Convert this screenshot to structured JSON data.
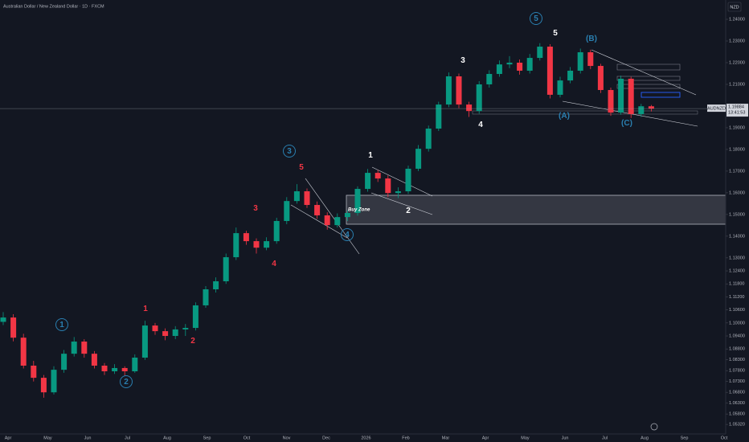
{
  "chart_data": {
    "type": "candlestick",
    "title": "Australian Dollar / New Zealand Dollar · 1D · FXCM",
    "currency": "NZD",
    "symbol_tag": "AUDNZD",
    "last_price": 1.19884,
    "countdown": "13:41:53",
    "up_color": "#089981",
    "down_color": "#f23645",
    "grid": false,
    "ylim": [
      1.0488,
      1.2489
    ],
    "yticks": [
      {
        "value": 1.24,
        "label": "1.24000"
      },
      {
        "value": 1.23,
        "label": "1.23000"
      },
      {
        "value": 1.22,
        "label": "1.22000"
      },
      {
        "value": 1.21,
        "label": "1.21000"
      },
      {
        "value": 1.19,
        "label": "1.19000"
      },
      {
        "value": 1.18,
        "label": "1.18000"
      },
      {
        "value": 1.17,
        "label": "1.17000"
      },
      {
        "value": 1.16,
        "label": "1.16000"
      },
      {
        "value": 1.15,
        "label": "1.15000"
      },
      {
        "value": 1.14,
        "label": "1.14000"
      },
      {
        "value": 1.13,
        "label": "1.13000"
      },
      {
        "value": 1.124,
        "label": "1.12400"
      },
      {
        "value": 1.118,
        "label": "1.11800"
      },
      {
        "value": 1.112,
        "label": "1.11200"
      },
      {
        "value": 1.106,
        "label": "1.10600"
      },
      {
        "value": 1.1,
        "label": "1.10000"
      },
      {
        "value": 1.094,
        "label": "1.09400"
      },
      {
        "value": 1.088,
        "label": "1.08800"
      },
      {
        "value": 1.083,
        "label": "1.08300"
      },
      {
        "value": 1.078,
        "label": "1.07800"
      },
      {
        "value": 1.073,
        "label": "1.07300"
      },
      {
        "value": 1.068,
        "label": "1.06800"
      },
      {
        "value": 1.063,
        "label": "1.06300"
      },
      {
        "value": 1.058,
        "label": "1.05800"
      },
      {
        "value": 1.0532,
        "label": "1.05320"
      }
    ],
    "months": [
      "Apr",
      "May",
      "Jun",
      "Jul",
      "Aug",
      "Sep",
      "Oct",
      "Nov",
      "Dec",
      "2026",
      "Feb",
      "Mar",
      "Apr",
      "May",
      "Jun",
      "Jul",
      "Aug",
      "Sep",
      "Oct"
    ],
    "ohlc": [
      [
        1.1005,
        1.105,
        1.099,
        1.1025
      ],
      [
        1.1025,
        1.104,
        1.0915,
        1.0932
      ],
      [
        1.0932,
        1.095,
        1.079,
        1.0803
      ],
      [
        1.0803,
        1.0825,
        1.073,
        1.0747
      ],
      [
        1.0747,
        1.076,
        1.0655,
        1.068
      ],
      [
        1.068,
        1.08,
        1.067,
        1.0784
      ],
      [
        1.0784,
        1.0875,
        1.077,
        1.0858
      ],
      [
        1.0858,
        1.0935,
        1.0845,
        1.0914
      ],
      [
        1.0914,
        1.0925,
        1.084,
        1.0858
      ],
      [
        1.0858,
        1.087,
        1.079,
        1.0803
      ],
      [
        1.0803,
        1.0815,
        1.076,
        1.0777
      ],
      [
        1.0777,
        1.081,
        1.0765,
        1.0792
      ],
      [
        1.0792,
        1.08,
        1.0755,
        1.0777
      ],
      [
        1.0777,
        1.0855,
        1.077,
        1.084
      ],
      [
        1.084,
        1.101,
        1.083,
        1.0988
      ],
      [
        1.0988,
        1.1,
        1.0945,
        1.0962
      ],
      [
        1.0962,
        1.0975,
        1.092,
        1.094
      ],
      [
        1.094,
        1.0985,
        1.0925,
        1.097
      ],
      [
        1.097,
        1.0995,
        1.094,
        1.0977
      ],
      [
        1.0977,
        1.1095,
        1.0965,
        1.1081
      ],
      [
        1.1081,
        1.117,
        1.107,
        1.1155
      ],
      [
        1.1155,
        1.121,
        1.114,
        1.1192
      ],
      [
        1.1192,
        1.132,
        1.118,
        1.1303
      ],
      [
        1.1303,
        1.144,
        1.129,
        1.1414
      ],
      [
        1.1414,
        1.1425,
        1.136,
        1.1377
      ],
      [
        1.1377,
        1.139,
        1.132,
        1.1347
      ],
      [
        1.1347,
        1.1395,
        1.1335,
        1.1377
      ],
      [
        1.1377,
        1.1485,
        1.1365,
        1.147
      ],
      [
        1.147,
        1.158,
        1.1455,
        1.1562
      ],
      [
        1.1562,
        1.164,
        1.155,
        1.1607
      ],
      [
        1.1607,
        1.162,
        1.153,
        1.1544
      ],
      [
        1.1544,
        1.156,
        1.148,
        1.1496
      ],
      [
        1.1496,
        1.151,
        1.143,
        1.1451
      ],
      [
        1.1451,
        1.1505,
        1.144,
        1.1488
      ],
      [
        1.1488,
        1.152,
        1.147,
        1.1507
      ],
      [
        1.1507,
        1.163,
        1.1495,
        1.1618
      ],
      [
        1.1618,
        1.171,
        1.1605,
        1.1692
      ],
      [
        1.1692,
        1.1705,
        1.165,
        1.1666
      ],
      [
        1.1666,
        1.168,
        1.158,
        1.1599
      ],
      [
        1.1599,
        1.1625,
        1.1575,
        1.1607
      ],
      [
        1.1607,
        1.1725,
        1.1595,
        1.1711
      ],
      [
        1.1711,
        1.182,
        1.17,
        1.1803
      ],
      [
        1.1803,
        1.191,
        1.179,
        1.1896
      ],
      [
        1.1896,
        1.202,
        1.1885,
        1.2007
      ],
      [
        1.2007,
        1.2155,
        1.1995,
        1.2137
      ],
      [
        1.2137,
        1.215,
        1.199,
        1.2007
      ],
      [
        1.2007,
        1.202,
        1.195,
        1.1977
      ],
      [
        1.1977,
        1.2115,
        1.1965,
        1.21
      ],
      [
        1.21,
        1.2165,
        1.2085,
        1.2148
      ],
      [
        1.2148,
        1.221,
        1.2135,
        1.2192
      ],
      [
        1.2192,
        1.223,
        1.2175,
        1.22
      ],
      [
        1.22,
        1.2215,
        1.2145,
        1.2163
      ],
      [
        1.2163,
        1.224,
        1.215,
        1.2222
      ],
      [
        1.2222,
        1.229,
        1.221,
        1.2274
      ],
      [
        1.2274,
        1.2285,
        1.2035,
        1.2052
      ],
      [
        1.2052,
        1.2135,
        1.204,
        1.2118
      ],
      [
        1.2118,
        1.218,
        1.2105,
        1.2163
      ],
      [
        1.2163,
        1.2265,
        1.215,
        1.2248
      ],
      [
        1.2248,
        1.226,
        1.217,
        1.2185
      ],
      [
        1.2185,
        1.2195,
        1.206,
        1.2074
      ],
      [
        1.2074,
        1.2085,
        1.1955,
        1.197
      ],
      [
        1.197,
        1.214,
        1.196,
        1.2126
      ],
      [
        1.2126,
        1.2135,
        1.1945,
        1.1963
      ],
      [
        1.1963,
        1.201,
        1.195,
        1.1999
      ],
      [
        1.1999,
        1.2005,
        1.1975,
        1.1988
      ]
    ],
    "wave_labels": [
      {
        "text": "1",
        "color": "#2a7fb0",
        "circled": true
      },
      {
        "text": "2",
        "color": "#2a7fb0",
        "circled": true
      },
      {
        "text": "3",
        "color": "#2a7fb0",
        "circled": true
      },
      {
        "text": "4",
        "color": "#2a7fb0",
        "circled": true
      },
      {
        "text": "5",
        "color": "#2a7fb0",
        "circled": true
      },
      {
        "text": "1",
        "color": "#f23645",
        "circled": false
      },
      {
        "text": "2",
        "color": "#f23645",
        "circled": false
      },
      {
        "text": "3",
        "color": "#f23645",
        "circled": false
      },
      {
        "text": "4",
        "color": "#f23645",
        "circled": false
      },
      {
        "text": "5",
        "color": "#f23645",
        "circled": false
      },
      {
        "text": "1",
        "color": "#ffffff",
        "circled": false
      },
      {
        "text": "2",
        "color": "#ffffff",
        "circled": false
      },
      {
        "text": "3",
        "color": "#ffffff",
        "circled": false
      },
      {
        "text": "4",
        "color": "#ffffff",
        "circled": false
      },
      {
        "text": "5",
        "color": "#ffffff",
        "circled": false
      },
      {
        "text": "(A)",
        "color": "#2a7fb0",
        "circled": false
      },
      {
        "text": "(B)",
        "color": "#2a7fb0",
        "circled": false
      },
      {
        "text": "(C)",
        "color": "#2a7fb0",
        "circled": false
      }
    ],
    "zone_label": "Buy Zone"
  }
}
